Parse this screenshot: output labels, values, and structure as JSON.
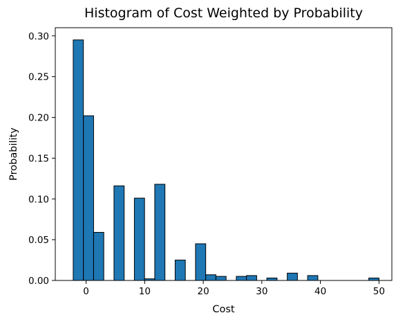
{
  "chart_data": {
    "type": "bar",
    "title": "Histogram of Cost Weighted by Probability",
    "xlabel": "Cost",
    "ylabel": "Probability",
    "xlim": [
      -5.26,
      52.2
    ],
    "ylim": [
      0,
      0.31
    ],
    "xticks": [
      0,
      10,
      20,
      30,
      40,
      50
    ],
    "yticks": [
      0.0,
      0.05,
      0.1,
      0.15,
      0.2,
      0.25,
      0.3
    ],
    "ytick_labels": [
      "0.00",
      "0.05",
      "0.10",
      "0.15",
      "0.20",
      "0.25",
      "0.30"
    ],
    "bin_edges": [
      -2.2,
      -0.46,
      1.28,
      3.02,
      4.76,
      6.5,
      8.24,
      9.98,
      11.72,
      13.46,
      15.2,
      16.94,
      18.68,
      20.42,
      22.16,
      23.9,
      25.64,
      27.38,
      29.12,
      30.86,
      32.6,
      34.34,
      36.08,
      37.82,
      39.56,
      41.3,
      43.04,
      44.78,
      46.52,
      48.26,
      50.0
    ],
    "values": [
      0.295,
      0.202,
      0.059,
      0.0,
      0.116,
      0.0,
      0.101,
      0.002,
      0.118,
      0.0,
      0.025,
      0.0,
      0.045,
      0.007,
      0.005,
      0.0,
      0.005,
      0.006,
      0.0,
      0.003,
      0.0,
      0.009,
      0.0,
      0.006,
      0.0,
      0.0,
      0.0,
      0.0,
      0.0,
      0.003
    ],
    "bar_color": "#1f77b4",
    "edge_color": "#000000",
    "grid": false,
    "legend": "none"
  }
}
